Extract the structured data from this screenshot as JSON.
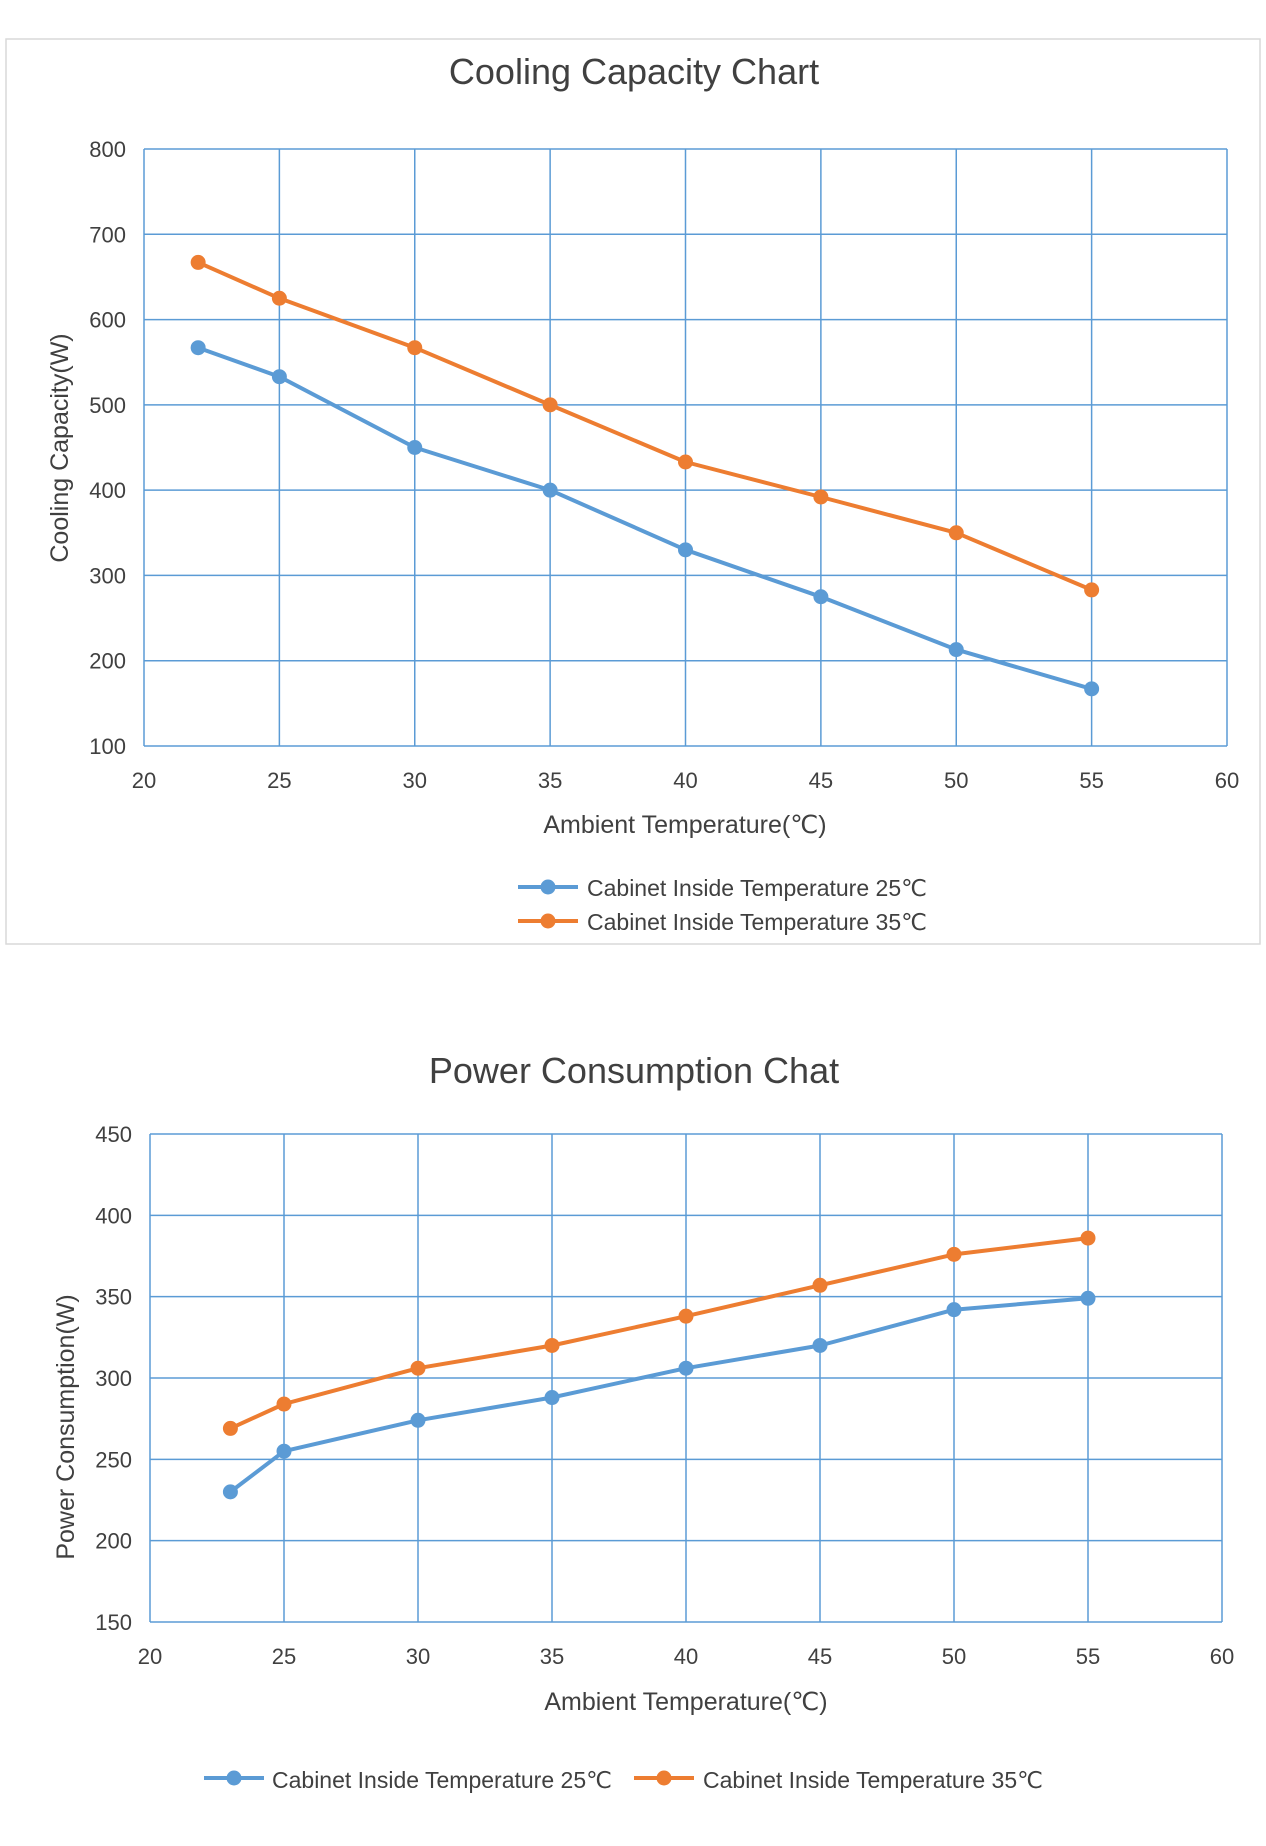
{
  "colors": {
    "series1": "#5b9bd5",
    "series2": "#ed7d31",
    "grid": "#5b9bd5",
    "text": "#404040"
  },
  "chart_data": [
    {
      "type": "line",
      "title": "Cooling Capacity Chart",
      "xlabel": "Ambient Temperature(℃)",
      "ylabel": "Cooling Capacity(W)",
      "xlim": [
        20,
        60
      ],
      "ylim": [
        100,
        800
      ],
      "xticks": [
        "20",
        "25",
        "30",
        "35",
        "40",
        "45",
        "50",
        "55",
        "60"
      ],
      "yticks": [
        "100",
        "200",
        "300",
        "400",
        "500",
        "600",
        "700",
        "800"
      ],
      "grid": true,
      "legend_position": "bottom",
      "series": [
        {
          "name": "Cabinet Inside Temperature 25℃",
          "x": [
            22,
            25,
            30,
            35,
            40,
            45,
            50,
            55
          ],
          "y": [
            567,
            533,
            450,
            400,
            330,
            275,
            213,
            167
          ]
        },
        {
          "name": "Cabinet Inside Temperature 35℃",
          "x": [
            22,
            25,
            30,
            35,
            40,
            45,
            50,
            55
          ],
          "y": [
            667,
            625,
            567,
            500,
            433,
            392,
            350,
            283
          ]
        }
      ]
    },
    {
      "type": "line",
      "title": "Power Consumption Chat",
      "xlabel": "Ambient Temperature(℃)",
      "ylabel": "Power Consumption(W)",
      "xlim": [
        20,
        60
      ],
      "ylim": [
        150,
        450
      ],
      "xticks": [
        "20",
        "25",
        "30",
        "35",
        "40",
        "45",
        "50",
        "55",
        "60"
      ],
      "yticks": [
        "150",
        "200",
        "250",
        "300",
        "350",
        "400",
        "450"
      ],
      "grid": true,
      "legend_position": "bottom",
      "series": [
        {
          "name": "Cabinet Inside Temperature 25℃",
          "x": [
            23,
            25,
            30,
            35,
            40,
            45,
            50,
            55
          ],
          "y": [
            230,
            255,
            274,
            288,
            306,
            320,
            342,
            349
          ]
        },
        {
          "name": "Cabinet Inside Temperature 35℃",
          "x": [
            23,
            25,
            30,
            35,
            40,
            45,
            50,
            55
          ],
          "y": [
            269,
            284,
            306,
            320,
            338,
            357,
            376,
            386
          ]
        }
      ]
    }
  ]
}
